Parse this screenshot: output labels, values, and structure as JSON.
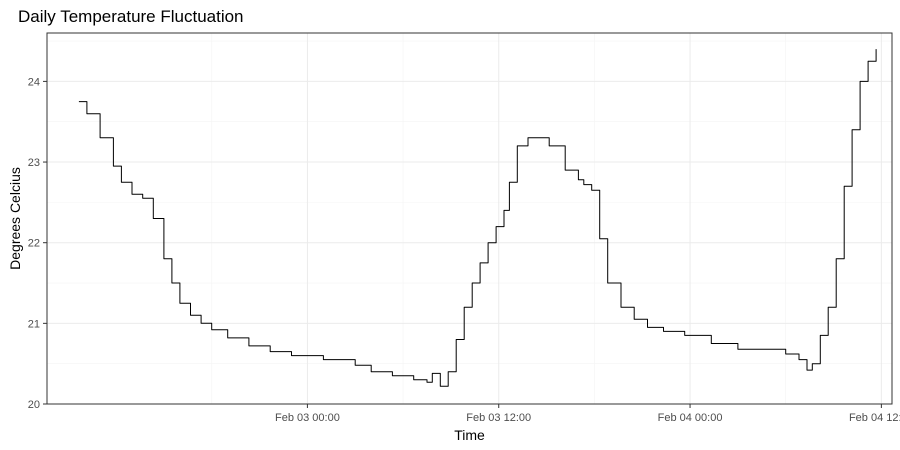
{
  "chart_data": {
    "type": "line",
    "title": "Daily Temperature Fluctuation",
    "xlabel": "Time",
    "ylabel": "Degrees Celcius",
    "x_range": [
      "2025-02-02T07:40",
      "2025-02-04T12:40"
    ],
    "ylim": [
      20,
      24.6
    ],
    "x_ticks": [
      {
        "label": "Feb 03 00:00",
        "at": "2025-02-03T00:00"
      },
      {
        "label": "Feb 03 12:00",
        "at": "2025-02-03T12:00"
      },
      {
        "label": "Feb 04 00:00",
        "at": "2025-02-04T00:00"
      },
      {
        "label": "Feb 04 12:00",
        "at": "2025-02-04T12:00"
      }
    ],
    "y_ticks": [
      20,
      21,
      22,
      23,
      24
    ],
    "grid": true,
    "legend": "none",
    "line_color": "#000000",
    "series": [
      {
        "x": [
          "2025-02-02T09:40",
          "2025-02-02T10:10",
          "2025-02-02T11:00",
          "2025-02-02T11:50",
          "2025-02-02T12:20",
          "2025-02-02T13:00",
          "2025-02-02T13:40",
          "2025-02-02T14:20",
          "2025-02-02T15:00",
          "2025-02-02T15:30",
          "2025-02-02T16:00",
          "2025-02-02T16:40",
          "2025-02-02T17:20",
          "2025-02-02T18:00",
          "2025-02-02T19:00",
          "2025-02-02T20:20",
          "2025-02-02T21:40",
          "2025-02-02T23:00",
          "2025-02-03T01:00",
          "2025-02-03T03:00",
          "2025-02-03T04:00",
          "2025-02-03T05:20",
          "2025-02-03T06:40",
          "2025-02-03T07:30",
          "2025-02-03T07:50",
          "2025-02-03T08:20",
          "2025-02-03T08:50",
          "2025-02-03T09:20",
          "2025-02-03T09:50",
          "2025-02-03T10:20",
          "2025-02-03T10:50",
          "2025-02-03T11:20",
          "2025-02-03T11:50",
          "2025-02-03T12:20",
          "2025-02-03T12:40",
          "2025-02-03T13:10",
          "2025-02-03T13:50",
          "2025-02-03T14:30",
          "2025-02-03T15:10",
          "2025-02-03T16:10",
          "2025-02-03T17:00",
          "2025-02-03T17:20",
          "2025-02-03T17:50",
          "2025-02-03T18:20",
          "2025-02-03T18:50",
          "2025-02-03T19:40",
          "2025-02-03T20:30",
          "2025-02-03T21:20",
          "2025-02-03T22:20",
          "2025-02-03T23:40",
          "2025-02-04T01:20",
          "2025-02-04T03:00",
          "2025-02-04T04:50",
          "2025-02-04T06:00",
          "2025-02-04T06:50",
          "2025-02-04T07:20",
          "2025-02-04T07:40",
          "2025-02-04T08:10",
          "2025-02-04T08:40",
          "2025-02-04T09:10",
          "2025-02-04T09:40",
          "2025-02-04T10:10",
          "2025-02-04T10:40",
          "2025-02-04T11:10",
          "2025-02-04T11:40"
        ],
        "y": [
          23.75,
          23.6,
          23.3,
          22.95,
          22.75,
          22.6,
          22.55,
          22.3,
          21.8,
          21.5,
          21.25,
          21.1,
          21.0,
          20.92,
          20.82,
          20.72,
          20.65,
          20.6,
          20.55,
          20.48,
          20.4,
          20.35,
          20.3,
          20.27,
          20.38,
          20.22,
          20.4,
          20.8,
          21.2,
          21.5,
          21.75,
          22.0,
          22.2,
          22.4,
          22.75,
          23.2,
          23.3,
          23.3,
          23.2,
          22.9,
          22.78,
          22.72,
          22.65,
          22.05,
          21.5,
          21.2,
          21.05,
          20.95,
          20.9,
          20.85,
          20.75,
          20.68,
          20.68,
          20.62,
          20.55,
          20.42,
          20.5,
          20.85,
          21.2,
          21.8,
          22.7,
          23.4,
          24.0,
          24.25,
          24.4
        ]
      }
    ]
  }
}
